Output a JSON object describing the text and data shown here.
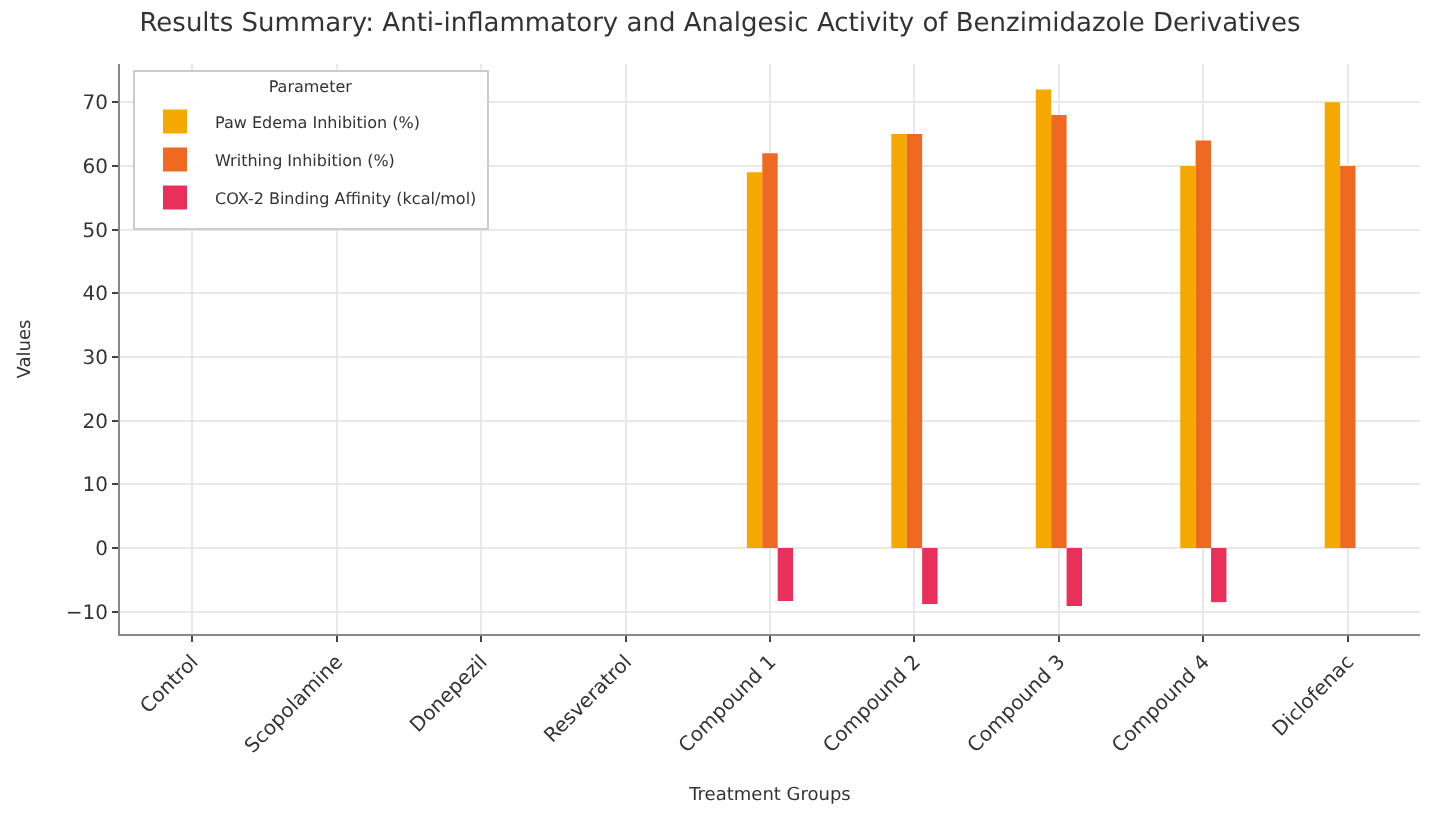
{
  "chart_data": {
    "type": "bar",
    "title": "Results Summary: Anti-inflammatory and Analgesic Activity of Benzimidazole Derivatives",
    "xlabel": "Treatment Groups",
    "ylabel": "Values",
    "legend_title": "Parameter",
    "categories": [
      "Control",
      "Scopolamine",
      "Donepezil",
      "Resveratrol",
      "Compound 1",
      "Compound 2",
      "Compound 3",
      "Compound 4",
      "Diclofenac"
    ],
    "series": [
      {
        "name": "Paw Edema Inhibition (%)",
        "color": "#f5a800",
        "values": [
          null,
          null,
          null,
          null,
          59,
          65,
          72,
          60,
          70
        ]
      },
      {
        "name": "Writhing Inhibition (%)",
        "color": "#ee6a22",
        "values": [
          null,
          null,
          null,
          null,
          62,
          65,
          68,
          64,
          60
        ]
      },
      {
        "name": "COX-2 Binding Affinity (kcal/mol)",
        "color": "#e8305a",
        "values": [
          null,
          null,
          null,
          null,
          -8.3,
          -8.8,
          -9.1,
          -8.5,
          null
        ]
      }
    ],
    "ylim": [
      -13.5,
      76
    ],
    "yticks": [
      -10,
      0,
      10,
      20,
      30,
      40,
      50,
      60,
      70
    ],
    "grid": true,
    "legend": "top left"
  }
}
